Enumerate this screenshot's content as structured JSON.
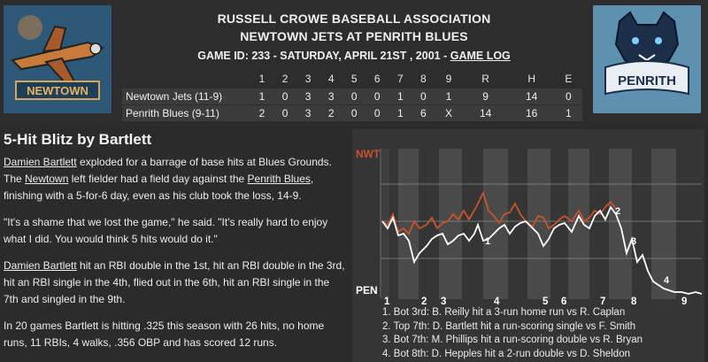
{
  "header": {
    "association": "RUSSELL CROWE BASEBALL ASSOCIATION",
    "matchup": "NEWTOWN JETS AT PENRITH BLUES",
    "game_info": "GAME ID: 233 - SATURDAY, APRIL 21ST , 2001 - ",
    "game_log_link": "GAME LOG"
  },
  "logos": {
    "left_text": "NEWTOWN",
    "right_text": "PENRITH"
  },
  "linescore": {
    "headers": [
      "1",
      "2",
      "3",
      "4",
      "5",
      "6",
      "7",
      "8",
      "9",
      "R",
      "H",
      "E"
    ],
    "rows": [
      {
        "team": "Newtown Jets (11-9)",
        "cells": [
          "1",
          "0",
          "3",
          "3",
          "0",
          "0",
          "1",
          "0",
          "1",
          "9",
          "14",
          "0"
        ]
      },
      {
        "team": "Penrith Blues (9-11)",
        "cells": [
          "2",
          "0",
          "3",
          "2",
          "0",
          "0",
          "1",
          "6",
          "X",
          "14",
          "16",
          "1"
        ]
      }
    ]
  },
  "story": {
    "headline": "5-Hit Blitz by Bartlett",
    "p1": {
      "link1": "Damien Bartlett",
      "text1": " exploded for a barrage of base hits at Blues Grounds. The ",
      "link2": "Newtown",
      "text2": " left fielder had a field day against the ",
      "link3": "Penrith Blues",
      "text3": ", finishing with a 5-for-6 day, even as his club took the loss, 14-9."
    },
    "p2": "\"It's a shame that we lost the game,\" he said. \"It's really hard to enjoy what I did. You would think 5 hits would do it.\"",
    "p3": {
      "link": "Damien Bartlett",
      "text": " hit an RBI double in the 1st, hit an RBI double in the 3rd, hit an RBI single in the 4th, flied out in the 6th, hit an RBI single in the 7th and singled in the 9th."
    },
    "p4": "In 20 games Bartlett is hitting .325 this season with 26 hits, no home runs, 11 RBIs, 4 walks, .356 OBP and has scored 12 runs."
  },
  "chart": {
    "top_label": "NWT",
    "bottom_label": "PEN",
    "innings": [
      "1",
      "2",
      "3",
      "4",
      "5",
      "6",
      "7",
      "8",
      "9"
    ],
    "markers": [
      "1",
      "2",
      "3",
      "4"
    ],
    "colors": {
      "away": "#c9532c",
      "home": "#ffffff"
    }
  },
  "notes": [
    "1. Bot 3rd: B. Reilly hit a 3-run home run vs R. Caplan",
    "2. Top 7th: D. Bartlett hit a run-scoring single vs F. Smith",
    "3. Bot 7th: M. Phillips hit a run-scoring double vs R. Bryan",
    "4. Bot 8th: D. Hepples hit a 2-run double vs D. Sheldon"
  ]
}
